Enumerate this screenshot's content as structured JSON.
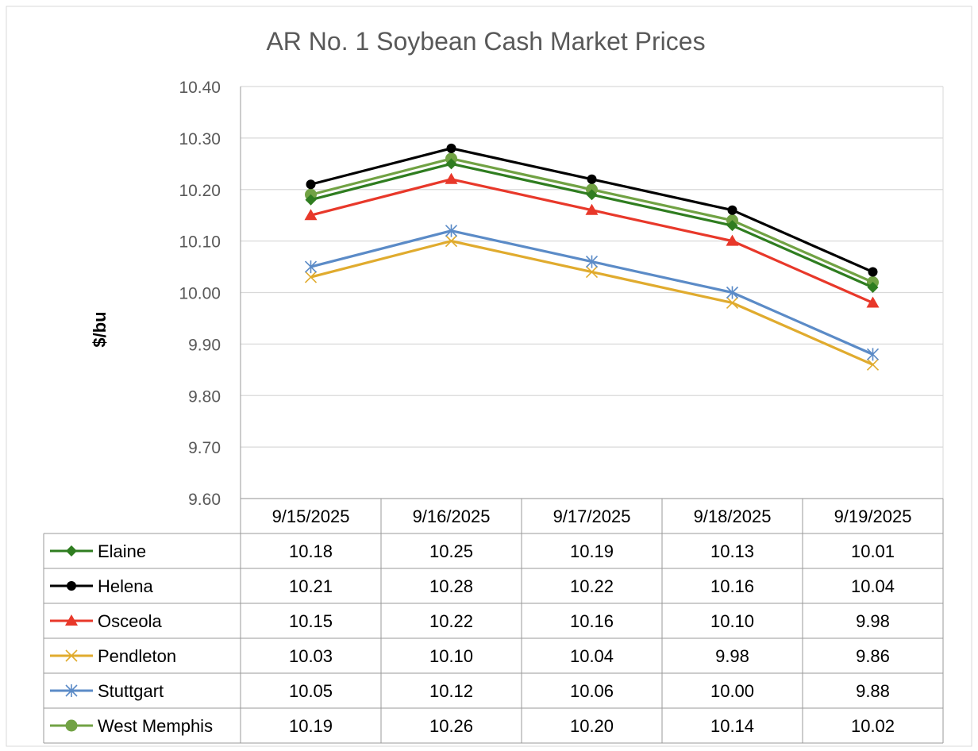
{
  "chart_data": {
    "type": "line",
    "title": "AR No. 1 Soybean Cash Market Prices",
    "xlabel": "",
    "ylabel": "$/bu",
    "ylim": [
      9.6,
      10.4
    ],
    "yticks": [
      "9.60",
      "9.70",
      "9.80",
      "9.90",
      "10.00",
      "10.10",
      "10.20",
      "10.30",
      "10.40"
    ],
    "grid": true,
    "legend": "data-table-below",
    "categories": [
      "9/15/2025",
      "9/16/2025",
      "9/17/2025",
      "9/18/2025",
      "9/19/2025"
    ],
    "series": [
      {
        "name": "Elaine",
        "color": "#2f7d20",
        "marker": "diamond",
        "values": [
          10.18,
          10.25,
          10.19,
          10.13,
          10.01
        ],
        "labels": [
          "10.18",
          "10.25",
          "10.19",
          "10.13",
          "10.01"
        ]
      },
      {
        "name": "Helena",
        "color": "#000000",
        "marker": "circle",
        "values": [
          10.21,
          10.28,
          10.22,
          10.16,
          10.04
        ],
        "labels": [
          "10.21",
          "10.28",
          "10.22",
          "10.16",
          "10.04"
        ]
      },
      {
        "name": "Osceola",
        "color": "#e8382a",
        "marker": "triangle",
        "values": [
          10.15,
          10.22,
          10.16,
          10.1,
          9.98
        ],
        "labels": [
          "10.15",
          "10.22",
          "10.16",
          "10.10",
          "9.98"
        ]
      },
      {
        "name": "Pendleton",
        "color": "#e0ab2e",
        "marker": "x",
        "values": [
          10.03,
          10.1,
          10.04,
          9.98,
          9.86
        ],
        "labels": [
          "10.03",
          "10.10",
          "10.04",
          "9.98",
          "9.86"
        ]
      },
      {
        "name": "Stuttgart",
        "color": "#5b8bc7",
        "marker": "star",
        "values": [
          10.05,
          10.12,
          10.06,
          10.0,
          9.88
        ],
        "labels": [
          "10.05",
          "10.12",
          "10.06",
          "10.00",
          "9.88"
        ]
      },
      {
        "name": "West Memphis",
        "color": "#71a244",
        "marker": "big-circle",
        "values": [
          10.19,
          10.26,
          10.2,
          10.14,
          10.02
        ],
        "labels": [
          "10.19",
          "10.26",
          "10.20",
          "10.14",
          "10.02"
        ]
      }
    ]
  }
}
